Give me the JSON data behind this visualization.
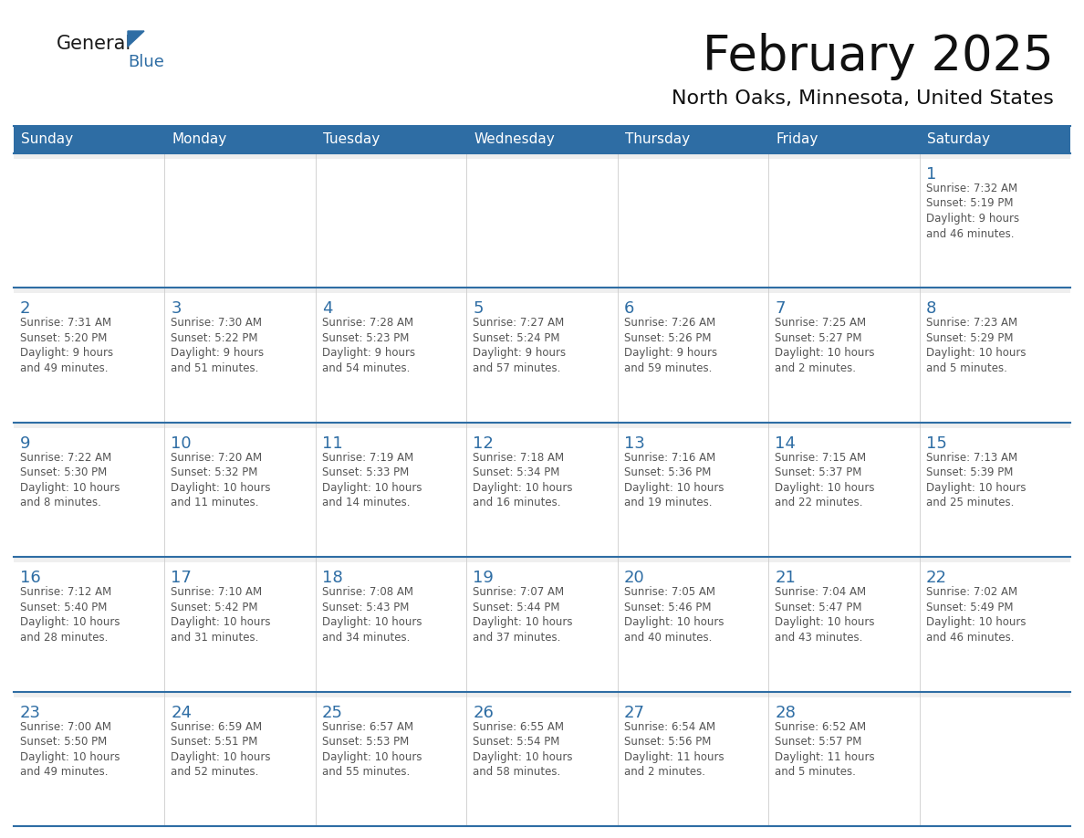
{
  "title": "February 2025",
  "subtitle": "North Oaks, Minnesota, United States",
  "header_bg": "#2E6DA4",
  "header_text_color": "#FFFFFF",
  "cell_bg_white": "#FFFFFF",
  "cell_bg_gray": "#EFEFEF",
  "day_number_color": "#2E6DA4",
  "text_color": "#555555",
  "line_color": "#2E6DA4",
  "days_of_week": [
    "Sunday",
    "Monday",
    "Tuesday",
    "Wednesday",
    "Thursday",
    "Friday",
    "Saturday"
  ],
  "logo_general_color": "#1a1a1a",
  "logo_blue_color": "#2E6DA4",
  "calendar_data": [
    [
      null,
      null,
      null,
      null,
      null,
      null,
      {
        "day": 1,
        "sunrise": "7:32 AM",
        "sunset": "5:19 PM",
        "daylight": "9 hours\nand 46 minutes."
      }
    ],
    [
      {
        "day": 2,
        "sunrise": "7:31 AM",
        "sunset": "5:20 PM",
        "daylight": "9 hours\nand 49 minutes."
      },
      {
        "day": 3,
        "sunrise": "7:30 AM",
        "sunset": "5:22 PM",
        "daylight": "9 hours\nand 51 minutes."
      },
      {
        "day": 4,
        "sunrise": "7:28 AM",
        "sunset": "5:23 PM",
        "daylight": "9 hours\nand 54 minutes."
      },
      {
        "day": 5,
        "sunrise": "7:27 AM",
        "sunset": "5:24 PM",
        "daylight": "9 hours\nand 57 minutes."
      },
      {
        "day": 6,
        "sunrise": "7:26 AM",
        "sunset": "5:26 PM",
        "daylight": "9 hours\nand 59 minutes."
      },
      {
        "day": 7,
        "sunrise": "7:25 AM",
        "sunset": "5:27 PM",
        "daylight": "10 hours\nand 2 minutes."
      },
      {
        "day": 8,
        "sunrise": "7:23 AM",
        "sunset": "5:29 PM",
        "daylight": "10 hours\nand 5 minutes."
      }
    ],
    [
      {
        "day": 9,
        "sunrise": "7:22 AM",
        "sunset": "5:30 PM",
        "daylight": "10 hours\nand 8 minutes."
      },
      {
        "day": 10,
        "sunrise": "7:20 AM",
        "sunset": "5:32 PM",
        "daylight": "10 hours\nand 11 minutes."
      },
      {
        "day": 11,
        "sunrise": "7:19 AM",
        "sunset": "5:33 PM",
        "daylight": "10 hours\nand 14 minutes."
      },
      {
        "day": 12,
        "sunrise": "7:18 AM",
        "sunset": "5:34 PM",
        "daylight": "10 hours\nand 16 minutes."
      },
      {
        "day": 13,
        "sunrise": "7:16 AM",
        "sunset": "5:36 PM",
        "daylight": "10 hours\nand 19 minutes."
      },
      {
        "day": 14,
        "sunrise": "7:15 AM",
        "sunset": "5:37 PM",
        "daylight": "10 hours\nand 22 minutes."
      },
      {
        "day": 15,
        "sunrise": "7:13 AM",
        "sunset": "5:39 PM",
        "daylight": "10 hours\nand 25 minutes."
      }
    ],
    [
      {
        "day": 16,
        "sunrise": "7:12 AM",
        "sunset": "5:40 PM",
        "daylight": "10 hours\nand 28 minutes."
      },
      {
        "day": 17,
        "sunrise": "7:10 AM",
        "sunset": "5:42 PM",
        "daylight": "10 hours\nand 31 minutes."
      },
      {
        "day": 18,
        "sunrise": "7:08 AM",
        "sunset": "5:43 PM",
        "daylight": "10 hours\nand 34 minutes."
      },
      {
        "day": 19,
        "sunrise": "7:07 AM",
        "sunset": "5:44 PM",
        "daylight": "10 hours\nand 37 minutes."
      },
      {
        "day": 20,
        "sunrise": "7:05 AM",
        "sunset": "5:46 PM",
        "daylight": "10 hours\nand 40 minutes."
      },
      {
        "day": 21,
        "sunrise": "7:04 AM",
        "sunset": "5:47 PM",
        "daylight": "10 hours\nand 43 minutes."
      },
      {
        "day": 22,
        "sunrise": "7:02 AM",
        "sunset": "5:49 PM",
        "daylight": "10 hours\nand 46 minutes."
      }
    ],
    [
      {
        "day": 23,
        "sunrise": "7:00 AM",
        "sunset": "5:50 PM",
        "daylight": "10 hours\nand 49 minutes."
      },
      {
        "day": 24,
        "sunrise": "6:59 AM",
        "sunset": "5:51 PM",
        "daylight": "10 hours\nand 52 minutes."
      },
      {
        "day": 25,
        "sunrise": "6:57 AM",
        "sunset": "5:53 PM",
        "daylight": "10 hours\nand 55 minutes."
      },
      {
        "day": 26,
        "sunrise": "6:55 AM",
        "sunset": "5:54 PM",
        "daylight": "10 hours\nand 58 minutes."
      },
      {
        "day": 27,
        "sunrise": "6:54 AM",
        "sunset": "5:56 PM",
        "daylight": "11 hours\nand 2 minutes."
      },
      {
        "day": 28,
        "sunrise": "6:52 AM",
        "sunset": "5:57 PM",
        "daylight": "11 hours\nand 5 minutes."
      },
      null
    ]
  ]
}
